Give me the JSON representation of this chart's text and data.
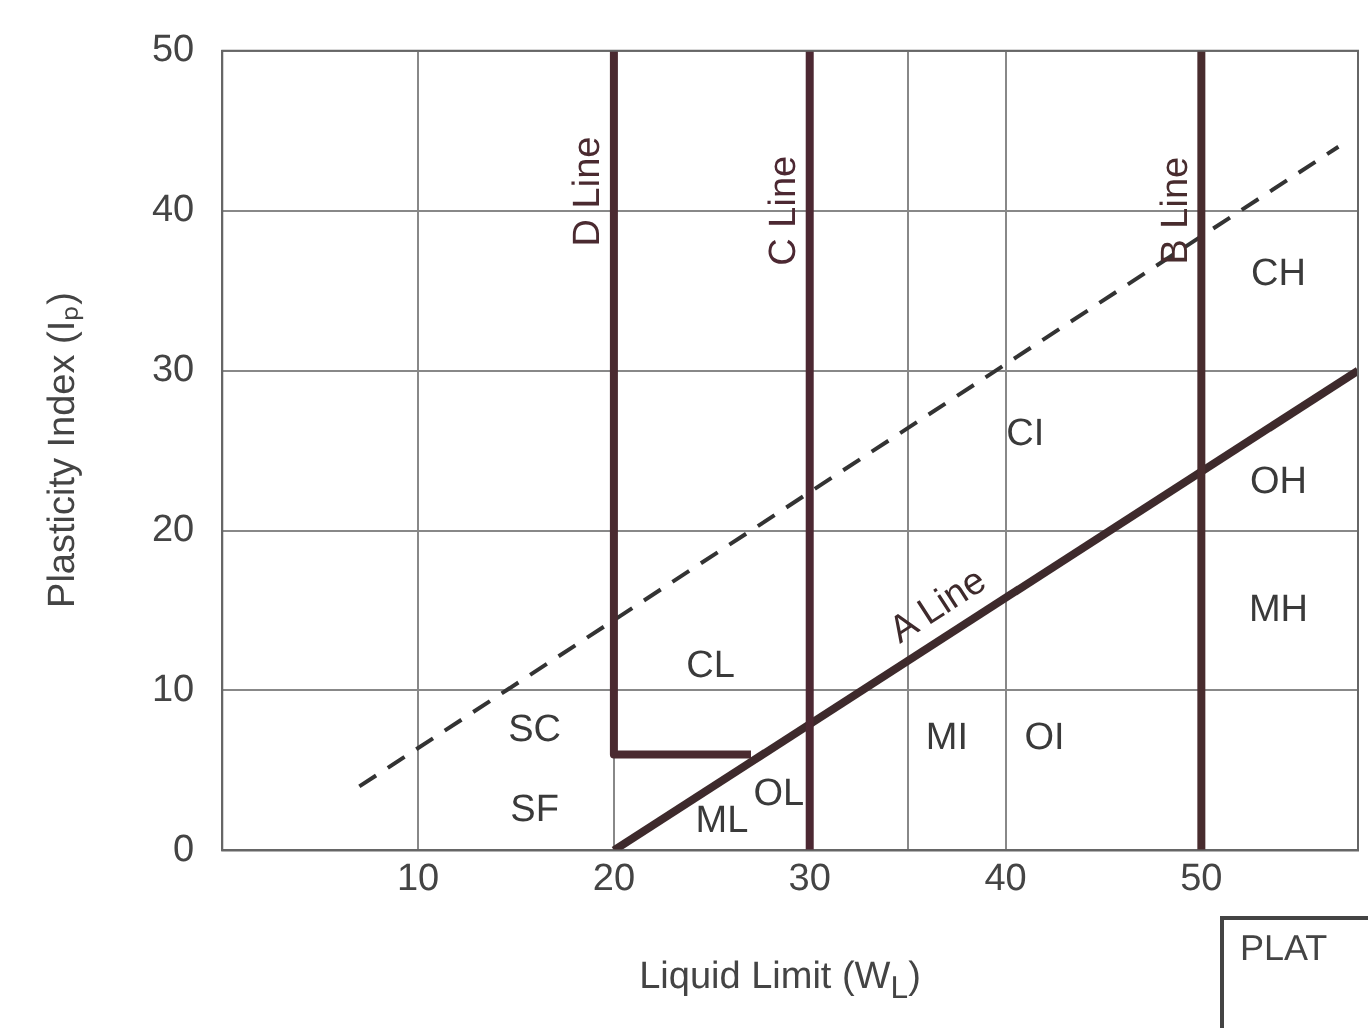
{
  "chart_data": {
    "type": "line",
    "xlabel": "Liquid Limit (W$_{L}$)",
    "ylabel": "Plasticity Index (Iₚ)",
    "xlim": [
      0,
      58
    ],
    "ylim": [
      0,
      50
    ],
    "xticks": [
      10,
      20,
      30,
      {
        "value": 35,
        "label": null
      },
      40,
      50
    ],
    "yticks": [
      0,
      10,
      20,
      30,
      40,
      50
    ],
    "grid": true,
    "legend": false,
    "marker": "none",
    "series": [
      {
        "name": "D Line",
        "color": "#4a2a30",
        "x": [
          20,
          20,
          27
        ],
        "values": [
          50,
          6,
          6
        ]
      },
      {
        "name": "C Line",
        "color": "#4c2832",
        "x": [
          30,
          30
        ],
        "values": [
          0,
          50
        ]
      },
      {
        "name": "B Line",
        "color": "#482c2e",
        "x": [
          50,
          50
        ],
        "values": [
          0,
          50
        ]
      },
      {
        "name": "A Line",
        "color": "#3e2a2c",
        "x": [
          20,
          58
        ],
        "values": [
          0,
          30
        ]
      },
      {
        "color": "#333333",
        "x": [
          7,
          57
        ],
        "values": [
          4,
          44
        ],
        "line_style": "dashed"
      }
    ],
    "annotations": [
      "CH",
      "CI",
      "OH",
      "MH",
      "CL",
      "SC",
      "SF",
      "ML",
      "OL",
      "MI",
      "OI",
      "PLAT"
    ]
  }
}
